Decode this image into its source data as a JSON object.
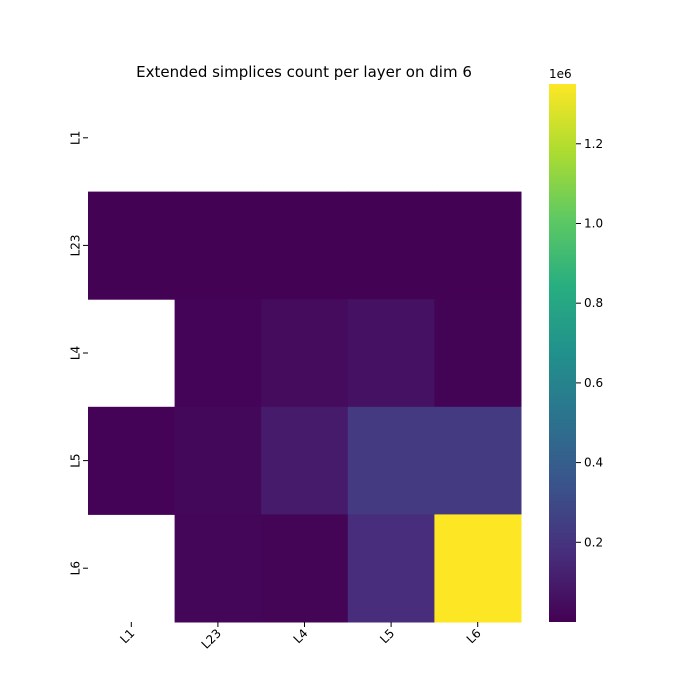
{
  "chart_data": {
    "type": "heatmap",
    "title": "Extended simplices count per layer on dim 6",
    "xlabel": "",
    "ylabel": "",
    "x_categories": [
      "L1",
      "L23",
      "L4",
      "L5",
      "L6"
    ],
    "y_categories": [
      "L1",
      "L23",
      "L4",
      "L5",
      "L6"
    ],
    "values": [
      [
        null,
        null,
        null,
        null,
        null
      ],
      [
        2000,
        3000,
        3000,
        3000,
        5000
      ],
      [
        null,
        12000,
        40000,
        60000,
        10000
      ],
      [
        8000,
        25000,
        100000,
        230000,
        230000
      ],
      [
        null,
        20000,
        15000,
        170000,
        1350000
      ]
    ],
    "color_scale": {
      "colormap": "viridis",
      "vmin": 0,
      "vmax": 1350000,
      "ticks": [
        0.2,
        0.4,
        0.6,
        0.8,
        1.0,
        1.2
      ],
      "tick_labels": [
        "0.2",
        "0.4",
        "0.6",
        "0.8",
        "1.0",
        "1.2"
      ],
      "offset_label": "1e6",
      "tick_multiplier": 1000000
    },
    "missing_cells_color": "#ffffff",
    "grid": false,
    "legend": "colorbar-right"
  }
}
